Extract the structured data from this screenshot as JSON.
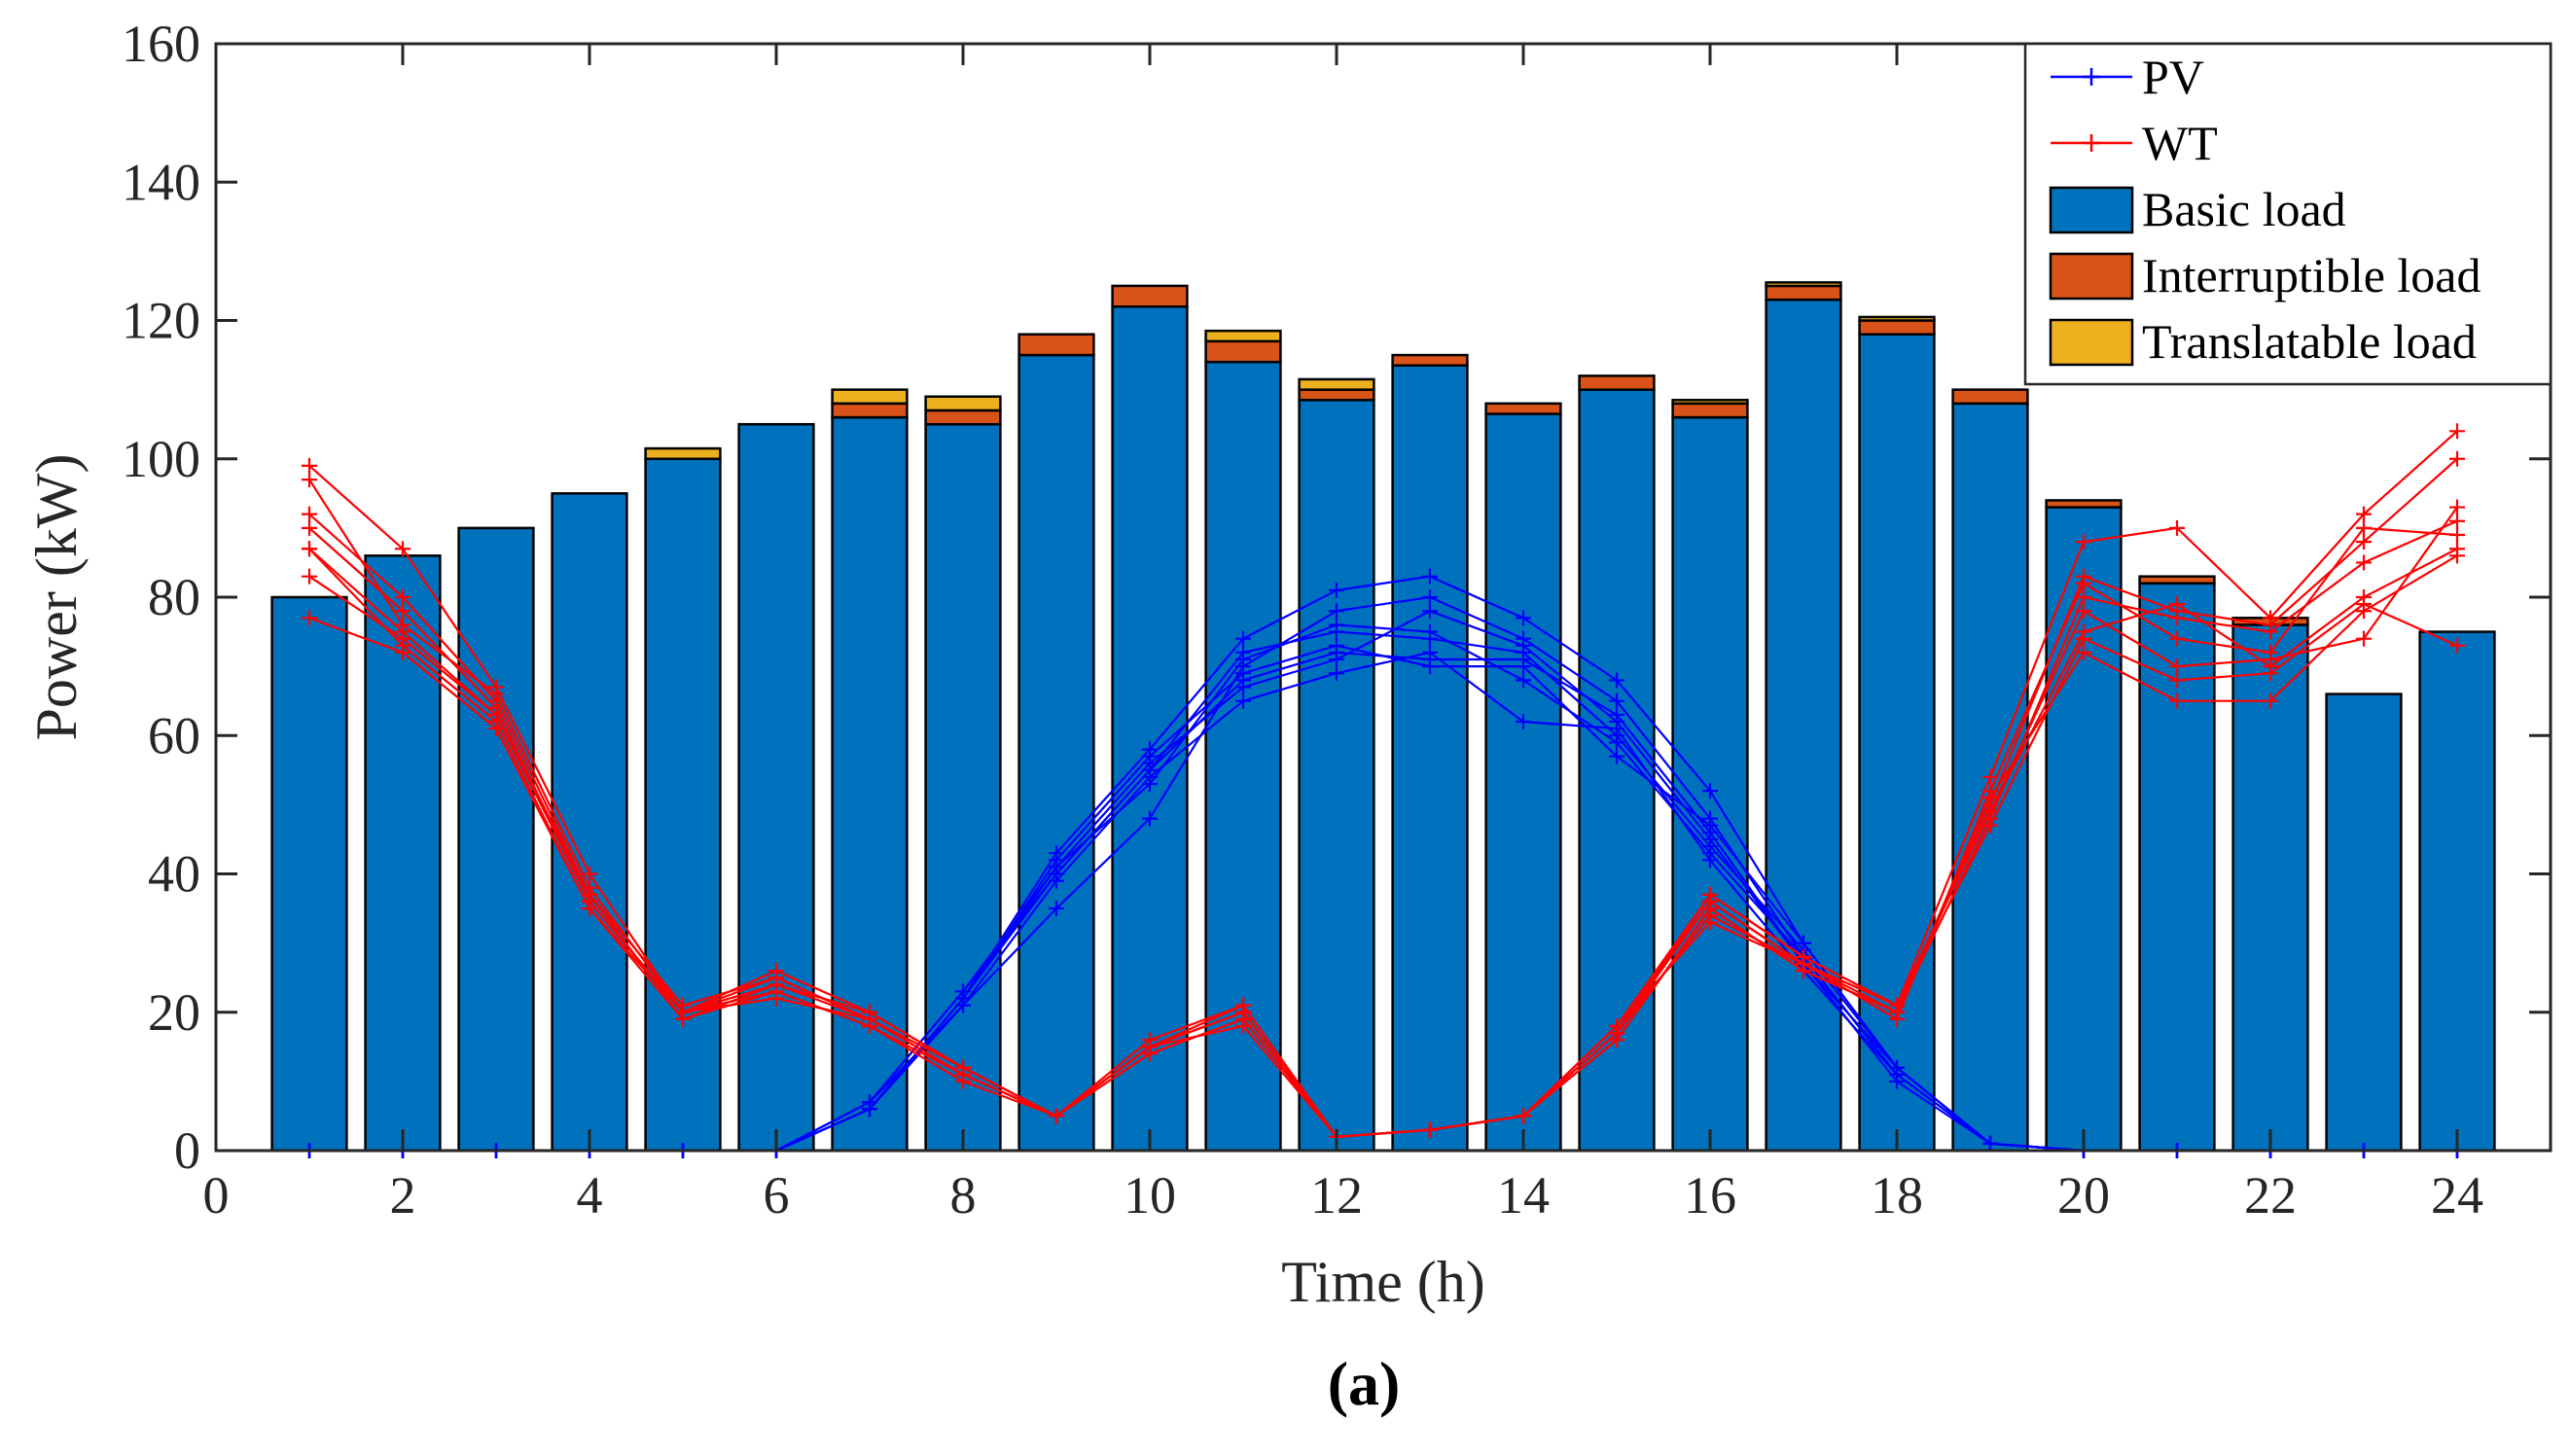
{
  "chart_data": {
    "type": "bar",
    "title": "",
    "figure_label": "(a)",
    "xlabel": "Time (h)",
    "ylabel": "Power (kW)",
    "xlim": [
      0,
      25
    ],
    "ylim": [
      0,
      160
    ],
    "xticks": [
      0,
      2,
      4,
      6,
      8,
      10,
      12,
      14,
      16,
      18,
      20,
      22,
      24
    ],
    "yticks": [
      0,
      20,
      40,
      60,
      80,
      100,
      120,
      140,
      160
    ],
    "grid": false,
    "legend_position": "top-right",
    "x": [
      1,
      2,
      3,
      4,
      5,
      6,
      7,
      8,
      9,
      10,
      11,
      12,
      13,
      14,
      15,
      16,
      17,
      18,
      19,
      20,
      21,
      22,
      23,
      24
    ],
    "stacked_series": [
      {
        "name": "Basic load",
        "color": "#0072BD",
        "values": [
          80,
          86,
          90,
          95,
          100,
          105,
          106,
          105,
          115,
          122,
          114,
          108.5,
          113.5,
          106.5,
          110,
          106,
          123,
          118,
          108,
          93,
          82,
          76,
          66,
          75
        ]
      },
      {
        "name": "Interruptible load",
        "color": "#D95319",
        "values": [
          0,
          0,
          0,
          0,
          0,
          0,
          2,
          2,
          3,
          3,
          3,
          1.5,
          1.5,
          1.5,
          2,
          2,
          2,
          2,
          2,
          1,
          1,
          1,
          0,
          0
        ]
      },
      {
        "name": "Translatable load",
        "color": "#EDB120",
        "values": [
          0,
          0,
          0,
          0,
          1.5,
          0,
          2,
          2,
          0,
          0,
          1.5,
          1.5,
          0,
          0,
          0,
          0.5,
          0.5,
          0.5,
          0,
          0,
          0,
          0,
          0,
          0
        ]
      }
    ],
    "line_series": [
      {
        "group": "PV",
        "color": "#0000FF",
        "marker": "+",
        "scenarios": [
          [
            0,
            0,
            0,
            0,
            0,
            0,
            6,
            22,
            43,
            58,
            74,
            81,
            83,
            77,
            68,
            52,
            30,
            12,
            1,
            0,
            0,
            0,
            0,
            0
          ],
          [
            0,
            0,
            0,
            0,
            0,
            0,
            6,
            21,
            35,
            48,
            70,
            78,
            80,
            74,
            65,
            48,
            28,
            11,
            1,
            0,
            0,
            0,
            0,
            0
          ],
          [
            0,
            0,
            0,
            0,
            0,
            0,
            7,
            23,
            41,
            56,
            67,
            71,
            78,
            73,
            62,
            45,
            27,
            10,
            1,
            0,
            0,
            0,
            0,
            0
          ],
          [
            0,
            0,
            0,
            0,
            0,
            0,
            6,
            22,
            40,
            55,
            72,
            75,
            74,
            72,
            60,
            44,
            29,
            12,
            1,
            0,
            0,
            0,
            0,
            0
          ],
          [
            0,
            0,
            0,
            0,
            0,
            0,
            7,
            21,
            39,
            54,
            65,
            69,
            72,
            62,
            61,
            42,
            26,
            11,
            1,
            0,
            0,
            0,
            0,
            0
          ],
          [
            0,
            0,
            0,
            0,
            0,
            0,
            6,
            22,
            42,
            57,
            69,
            73,
            70,
            70,
            57,
            47,
            30,
            12,
            1,
            0,
            0,
            0,
            0,
            0
          ],
          [
            0,
            0,
            0,
            0,
            0,
            0,
            6,
            22,
            41,
            53,
            71,
            76,
            75,
            68,
            59,
            43,
            28,
            11,
            1,
            0,
            0,
            0,
            0,
            0
          ],
          [
            0,
            0,
            0,
            0,
            0,
            0,
            7,
            23,
            40,
            55,
            68,
            72,
            71,
            71,
            63,
            46,
            27,
            12,
            1,
            0,
            0,
            0,
            0,
            0
          ]
        ]
      },
      {
        "group": "WT",
        "color": "#FF0000",
        "marker": "+",
        "scenarios": [
          [
            99,
            87,
            67,
            40,
            20,
            26,
            20,
            12,
            5,
            15,
            21,
            2,
            3,
            5,
            18,
            37,
            28,
            21,
            54,
            88,
            90,
            77,
            92,
            104
          ],
          [
            97,
            76,
            66,
            38,
            20,
            25,
            19,
            11,
            5,
            15,
            20,
            2,
            3,
            5,
            17,
            36,
            27,
            20,
            50,
            83,
            78,
            76,
            88,
            100
          ],
          [
            92,
            80,
            65,
            37,
            19,
            24,
            19,
            11,
            5,
            14,
            19,
            2,
            3,
            5,
            16,
            35,
            26,
            20,
            48,
            80,
            77,
            75,
            85,
            91
          ],
          [
            90,
            78,
            64,
            36,
            20,
            23,
            18,
            10,
            5,
            15,
            20,
            2,
            3,
            5,
            17,
            34,
            27,
            19,
            52,
            82,
            74,
            72,
            90,
            89
          ],
          [
            87,
            75,
            63,
            37,
            21,
            25,
            19,
            12,
            5,
            16,
            21,
            2,
            3,
            5,
            18,
            36,
            27,
            21,
            49,
            75,
            79,
            70,
            80,
            87
          ],
          [
            87,
            73,
            62,
            35,
            20,
            22,
            19,
            11,
            5,
            15,
            18,
            2,
            3,
            5,
            16,
            35,
            26,
            20,
            51,
            72,
            65,
            65,
            78,
            86
          ],
          [
            83,
            74,
            63,
            36,
            20,
            24,
            20,
            12,
            5,
            14,
            19,
            2,
            3,
            5,
            17,
            37,
            28,
            21,
            49,
            78,
            70,
            71,
            74,
            93
          ],
          [
            77,
            72,
            61,
            35,
            19,
            23,
            18,
            11,
            5,
            15,
            20,
            2,
            3,
            5,
            18,
            33,
            27,
            21,
            47,
            74,
            68,
            69,
            79,
            73
          ]
        ]
      }
    ],
    "legend": [
      {
        "label": "PV",
        "kind": "line",
        "color": "#0000FF"
      },
      {
        "label": "WT",
        "kind": "line",
        "color": "#FF0000"
      },
      {
        "label": "Basic load",
        "kind": "patch",
        "color": "#0072BD"
      },
      {
        "label": "Interruptible load",
        "kind": "patch",
        "color": "#D95319"
      },
      {
        "label": "Translatable load",
        "kind": "patch",
        "color": "#EDB120"
      }
    ]
  }
}
